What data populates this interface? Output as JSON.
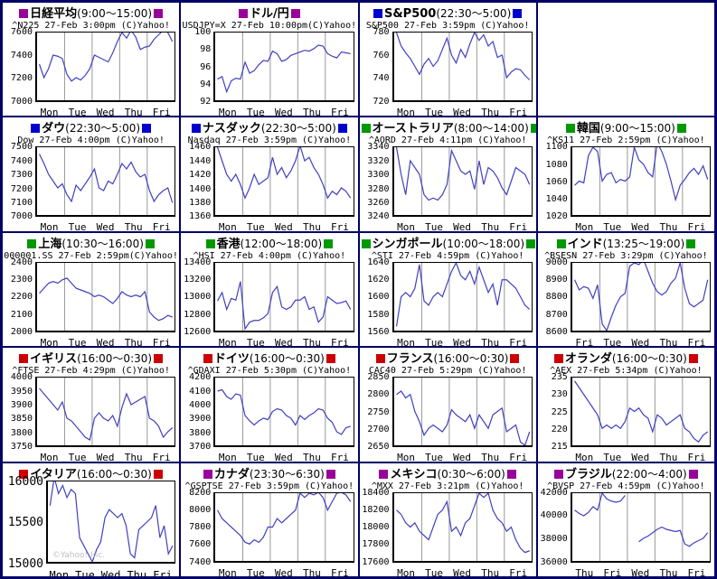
{
  "colors": {
    "purple": "#990099",
    "blue": "#0000cc",
    "green": "#009900",
    "red": "#cc0000",
    "line": "#4040c0",
    "separator": "#999999",
    "axis": "#000000",
    "cell_border": "#000066",
    "watermark_gray": "#c0c0c0"
  },
  "chart_data": [
    {
      "type": "line",
      "title": "日経平均",
      "hours": "(9:00〜15:00)",
      "marker_color": "purple",
      "subtitle": "^N225 27-Feb 3:00pm (C)Yahoo!",
      "yticks": [
        7600,
        7400,
        7200,
        7000
      ],
      "ylim": [
        7000,
        7600
      ],
      "days": [
        "Mon",
        "Tue",
        "Wed",
        "Thu",
        "Fri"
      ],
      "grid": "day-separators",
      "values": [
        7320,
        7200,
        7280,
        7400,
        7390,
        7370,
        7230,
        7170,
        7200,
        7180,
        7220,
        7280,
        7400,
        7380,
        7360,
        7340,
        7420,
        7520,
        7600,
        7550,
        7620,
        7560,
        7450,
        7470,
        7480,
        7540,
        7580,
        7620,
        7600,
        7520
      ]
    },
    {
      "type": "line",
      "title": "ドル/円",
      "hours": "",
      "marker_color": "purple",
      "subtitle": "USDJPY=X 27-Feb 10:00pm(C)Yahoo!",
      "yticks": [
        100,
        98,
        96,
        94,
        92
      ],
      "ylim": [
        92,
        100
      ],
      "days": [
        "Mon",
        "Tue",
        "Wed",
        "Thu",
        "Fri"
      ],
      "grid": "day-separators",
      "values": [
        94.5,
        94.8,
        93.0,
        94.3,
        94.6,
        94.5,
        96.5,
        95.2,
        95.5,
        96.2,
        96.7,
        96.6,
        97.8,
        97.5,
        96.6,
        96.8,
        97.3,
        97.5,
        97.7,
        97.9,
        97.8,
        98.1,
        98.5,
        98.4,
        97.5,
        97.2,
        97.0,
        97.7,
        97.6,
        97.5
      ]
    },
    {
      "type": "line",
      "title": "S&P500",
      "hours": "(22:30〜5:00)",
      "marker_color": "blue",
      "subtitle": "S&P500 27-Feb 3:59pm (C)Yahoo!",
      "yticks": [
        780,
        760,
        740,
        720
      ],
      "ylim": [
        720,
        780
      ],
      "days": [
        "Mon",
        "Tue",
        "Wed",
        "Thu",
        "Fri"
      ],
      "grid": "day-separators",
      "values": [
        780,
        768,
        762,
        757,
        750,
        743,
        752,
        757,
        750,
        755,
        765,
        775,
        760,
        753,
        765,
        758,
        770,
        780,
        773,
        778,
        768,
        772,
        758,
        760,
        740,
        745,
        748,
        747,
        742,
        738
      ]
    },
    {
      "type": "empty"
    },
    {
      "type": "line",
      "title": "ダウ",
      "hours": "(22:30〜5:00)",
      "marker_color": "blue",
      "subtitle": "Dow 27-Feb 4:00pm (C)Yahoo!",
      "yticks": [
        7500,
        7400,
        7300,
        7200,
        7100,
        7000
      ],
      "ylim": [
        7000,
        7500
      ],
      "days": [
        "Mon",
        "Tue",
        "Wed",
        "Thu",
        "Fri"
      ],
      "grid": "day-separators",
      "values": [
        7450,
        7380,
        7300,
        7250,
        7200,
        7230,
        7150,
        7100,
        7220,
        7180,
        7230,
        7280,
        7340,
        7200,
        7180,
        7250,
        7230,
        7300,
        7380,
        7340,
        7390,
        7320,
        7280,
        7300,
        7180,
        7100,
        7150,
        7180,
        7200,
        7090
      ]
    },
    {
      "type": "line",
      "title": "ナスダック",
      "hours": "(22:30〜5:00)",
      "marker_color": "blue",
      "subtitle": "Nasdaq 27-Feb 3:59pm (C)Yahoo!",
      "yticks": [
        1460,
        1440,
        1420,
        1400,
        1380,
        1360
      ],
      "ylim": [
        1360,
        1460
      ],
      "days": [
        "Mon",
        "Tue",
        "Wed",
        "Thu",
        "Fri"
      ],
      "grid": "day-separators",
      "values": [
        1460,
        1440,
        1420,
        1410,
        1420,
        1405,
        1385,
        1400,
        1420,
        1405,
        1410,
        1415,
        1445,
        1420,
        1430,
        1415,
        1425,
        1440,
        1462,
        1440,
        1445,
        1430,
        1420,
        1405,
        1385,
        1395,
        1390,
        1400,
        1395,
        1385
      ]
    },
    {
      "type": "line",
      "title": "オーストラリア",
      "hours": "(8:00〜14:00)",
      "marker_color": "green",
      "subtitle": "^AORD 27-Feb 4:11pm (C)Yahoo!",
      "yticks": [
        3340,
        3320,
        3300,
        3280,
        3260,
        3240
      ],
      "ylim": [
        3240,
        3340
      ],
      "days": [
        "Mon",
        "Tue",
        "Wed",
        "Thu",
        "Fri"
      ],
      "grid": "day-separators",
      "values": [
        3340,
        3300,
        3270,
        3320,
        3310,
        3300,
        3270,
        3262,
        3265,
        3262,
        3270,
        3285,
        3335,
        3320,
        3305,
        3300,
        3305,
        3278,
        3320,
        3285,
        3310,
        3305,
        3295,
        3280,
        3270,
        3290,
        3310,
        3305,
        3300,
        3285
      ]
    },
    {
      "type": "line",
      "title": "韓国",
      "hours": "(9:00〜15:00)",
      "marker_color": "green",
      "subtitle": "^KS11 27-Feb 2:59pm (C)Yahoo!",
      "yticks": [
        1100,
        1080,
        1060,
        1040,
        1020
      ],
      "ylim": [
        1020,
        1100
      ],
      "days": [
        "Mon",
        "Tue",
        "Wed",
        "Thu",
        "Fri"
      ],
      "grid": "day-separators",
      "values": [
        1055,
        1060,
        1058,
        1090,
        1100,
        1095,
        1060,
        1068,
        1070,
        1058,
        1062,
        1060,
        1065,
        1100,
        1085,
        1080,
        1070,
        1065,
        1105,
        1095,
        1080,
        1060,
        1038,
        1055,
        1062,
        1070,
        1075,
        1068,
        1078,
        1062
      ]
    },
    {
      "type": "line",
      "title": "上海",
      "hours": "(10:30〜16:00)",
      "marker_color": "green",
      "subtitle": "000001.SS 27-Feb 2:59pm(C)Yahoo!",
      "yticks": [
        2400,
        2300,
        2200,
        2100,
        2000
      ],
      "ylim": [
        2000,
        2400
      ],
      "days": [
        "Mon",
        "Tue",
        "Wed",
        "Thu",
        "Fri"
      ],
      "grid": "day-separators",
      "values": [
        2220,
        2250,
        2280,
        2290,
        2280,
        2300,
        2310,
        2280,
        2250,
        2240,
        2230,
        2220,
        2200,
        2210,
        2200,
        2180,
        2160,
        2190,
        2230,
        2210,
        2200,
        2210,
        2200,
        2230,
        2110,
        2080,
        2060,
        2070,
        2090,
        2080
      ]
    },
    {
      "type": "line",
      "title": "香港",
      "hours": "(12:00〜18:00)",
      "marker_color": "green",
      "subtitle": "^HSI 27-Feb 4:00pm (C)Yahoo!",
      "yticks": [
        13400,
        13200,
        13000,
        12800,
        12600
      ],
      "ylim": [
        12600,
        13400
      ],
      "days": [
        "Mon",
        "Tue",
        "Wed",
        "Thu",
        "Fri"
      ],
      "grid": "day-separators",
      "values": [
        12950,
        13050,
        12850,
        12980,
        12960,
        13180,
        12620,
        12700,
        12720,
        12720,
        12750,
        12800,
        13050,
        13120,
        12880,
        12850,
        12880,
        12960,
        12960,
        13000,
        12850,
        12880,
        12700,
        12760,
        13000,
        12960,
        12920,
        12930,
        12950,
        12850
      ]
    },
    {
      "type": "line",
      "title": "シンガポール",
      "hours": "(10:00〜18:00)",
      "marker_color": "green",
      "subtitle": "^STI 27-Feb 4:59pm (C)Yahoo!",
      "yticks": [
        1640,
        1620,
        1600,
        1580,
        1560
      ],
      "ylim": [
        1560,
        1640
      ],
      "days": [
        "Mon",
        "Tue",
        "Wed",
        "Thu",
        "Fri"
      ],
      "grid": "day-separators",
      "values": [
        1565,
        1600,
        1605,
        1600,
        1610,
        1638,
        1595,
        1590,
        1600,
        1605,
        1600,
        1615,
        1630,
        1640,
        1625,
        1620,
        1630,
        1615,
        1635,
        1620,
        1605,
        1615,
        1590,
        1620,
        1620,
        1615,
        1610,
        1600,
        1590,
        1585
      ]
    },
    {
      "type": "line",
      "title": "インド",
      "hours": "(13:25〜19:00)",
      "marker_color": "green",
      "subtitle": "^BSESN 27-Feb 3:29pm (C)Yahoo!",
      "yticks": [
        9000,
        8900,
        8800,
        8700,
        8600
      ],
      "ylim": [
        8600,
        9000
      ],
      "days": [
        "Fri",
        "Tue",
        "Wed",
        "Thu",
        "Fri"
      ],
      "grid": "day-separators",
      "values": [
        8900,
        8840,
        8860,
        8850,
        8790,
        8870,
        8640,
        8600,
        8680,
        8750,
        8800,
        8820,
        8980,
        9000,
        8990,
        9020,
        8950,
        8880,
        8830,
        8810,
        8830,
        8880,
        8910,
        9000,
        8850,
        8760,
        8740,
        8760,
        8780,
        8900
      ]
    },
    {
      "type": "line",
      "title": "イギリス",
      "hours": "(16:00〜0:30)",
      "marker_color": "red",
      "subtitle": "^FTSE 27-Feb 4:29pm (C)Yahoo!",
      "yticks": [
        4000,
        3950,
        3900,
        3850,
        3800,
        3750
      ],
      "ylim": [
        3750,
        4000
      ],
      "days": [
        "Mon",
        "Tue",
        "Wed",
        "Thu",
        "Fri"
      ],
      "grid": "day-separators",
      "values": [
        3960,
        3940,
        3920,
        3900,
        3880,
        3910,
        3850,
        3840,
        3820,
        3800,
        3780,
        3770,
        3850,
        3870,
        3850,
        3840,
        3860,
        3820,
        3890,
        3940,
        3900,
        3910,
        3920,
        3930,
        3850,
        3840,
        3820,
        3780,
        3800,
        3815
      ]
    },
    {
      "type": "line",
      "title": "ドイツ",
      "hours": "(16:00〜0:30)",
      "marker_color": "red",
      "subtitle": "^GDAXI 27-Feb 5:30pm (C)Yahoo!",
      "yticks": [
        4200,
        4100,
        4000,
        3900,
        3800,
        3700
      ],
      "ylim": [
        3700,
        4200
      ],
      "days": [
        "Mon",
        "Tue",
        "Wed",
        "Thu",
        "Fri"
      ],
      "grid": "day-separators",
      "values": [
        4100,
        4110,
        4060,
        4040,
        4080,
        4070,
        3920,
        3880,
        3850,
        3880,
        3900,
        3890,
        3950,
        3970,
        3960,
        3920,
        3900,
        3850,
        3920,
        3890,
        3920,
        3940,
        3970,
        3960,
        3900,
        3870,
        3800,
        3780,
        3830,
        3840
      ]
    },
    {
      "type": "line",
      "title": "フランス",
      "hours": "(16:00〜0:30)",
      "marker_color": "red",
      "subtitle": "CAC40 27-Feb 5:29pm (C)Yahoo!",
      "yticks": [
        2850,
        2800,
        2750,
        2700,
        2650
      ],
      "ylim": [
        2650,
        2850
      ],
      "days": [
        "Mon",
        "Tue",
        "Wed",
        "Thu",
        "Fri"
      ],
      "grid": "day-separators",
      "values": [
        2800,
        2810,
        2790,
        2800,
        2750,
        2720,
        2680,
        2700,
        2710,
        2700,
        2690,
        2710,
        2755,
        2740,
        2730,
        2720,
        2740,
        2700,
        2740,
        2720,
        2700,
        2740,
        2750,
        2760,
        2690,
        2700,
        2710,
        2660,
        2650,
        2690
      ]
    },
    {
      "type": "line",
      "title": "オランダ",
      "hours": "(16:00〜0:30)",
      "marker_color": "red",
      "subtitle": "^AEX 27-Feb 5:34pm (C)Yahoo!",
      "yticks": [
        235,
        230,
        225,
        220,
        215
      ],
      "ylim": [
        215,
        235
      ],
      "days": [
        "Mon",
        "Tue",
        "Wed",
        "Thu",
        "Fri"
      ],
      "grid": "day-separators",
      "values": [
        234,
        232,
        230,
        228,
        226,
        224,
        220,
        221,
        220,
        221,
        220,
        222,
        226,
        225,
        226,
        224,
        223,
        219,
        224,
        223,
        221,
        222,
        223,
        224,
        220,
        219,
        217,
        216,
        218,
        219
      ]
    },
    {
      "type": "line",
      "title": "イタリア",
      "hours": "(16:00〜0:30)",
      "marker_color": "red",
      "subtitle": "",
      "style": "big",
      "watermark": "©Yahoo! Inc.",
      "yticks": [
        16000,
        15500,
        15000
      ],
      "ylim": [
        15000,
        16000
      ],
      "days": [
        "Mon",
        "Tue",
        "Wed",
        "Thu",
        "Fri"
      ],
      "grid": "none",
      "values": [
        15700,
        16050,
        15850,
        15950,
        15800,
        15900,
        15850,
        15300,
        15200,
        15100,
        15000,
        15150,
        15250,
        15550,
        15650,
        15600,
        15550,
        15600,
        15450,
        15100,
        15050,
        15400,
        15450,
        15500,
        15550,
        15700,
        15300,
        15450,
        15100,
        15200
      ]
    },
    {
      "type": "line",
      "title": "カナダ",
      "hours": "(23:30〜6:30)",
      "marker_color": "purple",
      "subtitle": "^GSPTSE 27-Feb 3:59pm (C)Yahoo!",
      "yticks": [
        8200,
        8000,
        7800,
        7600,
        7400
      ],
      "ylim": [
        7400,
        8200
      ],
      "days": [
        "Mon",
        "Tue",
        "Wed",
        "Thu",
        "Fri"
      ],
      "grid": "day-separators",
      "values": [
        8000,
        7900,
        7850,
        7800,
        7750,
        7700,
        7620,
        7600,
        7650,
        7620,
        7680,
        7800,
        7800,
        7900,
        7850,
        7900,
        7950,
        8000,
        8200,
        8150,
        8200,
        8180,
        8210,
        8150,
        8000,
        8100,
        8200,
        8210,
        8180,
        8100
      ]
    },
    {
      "type": "line",
      "title": "メキシコ",
      "hours": "(0:30〜6:00)",
      "marker_color": "purple",
      "subtitle": "^MXX 27-Feb 3:21pm (C)Yahoo!",
      "yticks": [
        18400,
        18200,
        18000,
        17800,
        17600
      ],
      "ylim": [
        17600,
        18400
      ],
      "days": [
        "Mon",
        "Tue",
        "Wed",
        "Thu",
        "Fri"
      ],
      "grid": "day-separators",
      "values": [
        18200,
        18150,
        18050,
        18000,
        18050,
        17950,
        17900,
        17850,
        18000,
        18150,
        18200,
        18300,
        17950,
        18000,
        17900,
        18050,
        18100,
        18250,
        18400,
        18350,
        18400,
        18200,
        18100,
        18050,
        17950,
        18000,
        17850,
        17750,
        17700,
        17720
      ]
    },
    {
      "type": "line",
      "title": "ブラジル",
      "hours": "(22:00〜4:00)",
      "marker_color": "purple",
      "subtitle": "^BVSP 27-Feb 4:59pm (C)Yahoo!",
      "yticks": [
        42000,
        40000,
        38000,
        36000
      ],
      "ylim": [
        36000,
        42000
      ],
      "days": [
        "Thu",
        "Fri",
        "Wed",
        "Thu",
        "Fri"
      ],
      "grid": "day-separators",
      "values": [
        40500,
        40200,
        40000,
        40300,
        40800,
        40500,
        42000,
        41500,
        41300,
        41200,
        41300,
        41800,
        null,
        null,
        37700,
        38000,
        38200,
        38500,
        38800,
        39000,
        38800,
        38700,
        38600,
        38700,
        37500,
        37300,
        37600,
        37800,
        38000,
        38500
      ]
    }
  ]
}
